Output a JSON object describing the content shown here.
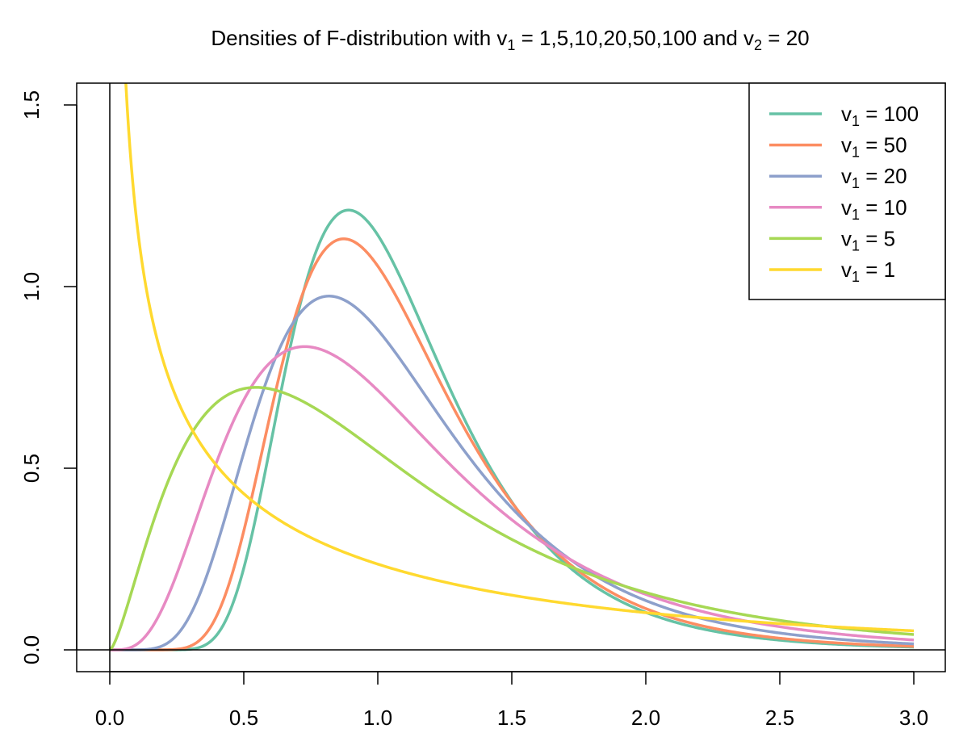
{
  "chart_data": {
    "type": "line",
    "title": {
      "prefix": "Densities of F-distribution with v",
      "sub1": "1",
      "middle": " = 1,5,10,20,50,100 and v",
      "sub2": "2",
      "suffix": " = 20"
    },
    "xlabel": "",
    "ylabel": "",
    "xlim": [
      0,
      3
    ],
    "ylim": [
      0,
      1.5
    ],
    "x_ticks": [
      "0.0",
      "0.5",
      "1.0",
      "1.5",
      "2.0",
      "2.5",
      "3.0"
    ],
    "y_ticks": [
      "0.0",
      "0.5",
      "1.0",
      "1.5"
    ],
    "grid": false,
    "legend_position": "top-right",
    "reference_lines": {
      "horizontal_at": 0,
      "vertical_at": 0
    },
    "series": [
      {
        "name": "v1 = 100",
        "legend_base": "v",
        "legend_sub": "1",
        "legend_value": " = 100",
        "df1": 100,
        "df2": 20,
        "color": "#66c2a5"
      },
      {
        "name": "v1 = 50",
        "legend_base": "v",
        "legend_sub": "1",
        "legend_value": " = 50",
        "df1": 50,
        "df2": 20,
        "color": "#fc8d62"
      },
      {
        "name": "v1 = 20",
        "legend_base": "v",
        "legend_sub": "1",
        "legend_value": " = 20",
        "df1": 20,
        "df2": 20,
        "color": "#8da0cb"
      },
      {
        "name": "v1 = 10",
        "legend_base": "v",
        "legend_sub": "1",
        "legend_value": " = 10",
        "df1": 10,
        "df2": 20,
        "color": "#e78ac3"
      },
      {
        "name": "v1 = 5",
        "legend_base": "v",
        "legend_sub": "1",
        "legend_value": " = 5",
        "df1": 5,
        "df2": 20,
        "color": "#a6d854"
      },
      {
        "name": "v1 = 1",
        "legend_base": "v",
        "legend_sub": "1",
        "legend_value": " = 1",
        "df1": 1,
        "df2": 20,
        "color": "#ffd92f"
      }
    ]
  }
}
